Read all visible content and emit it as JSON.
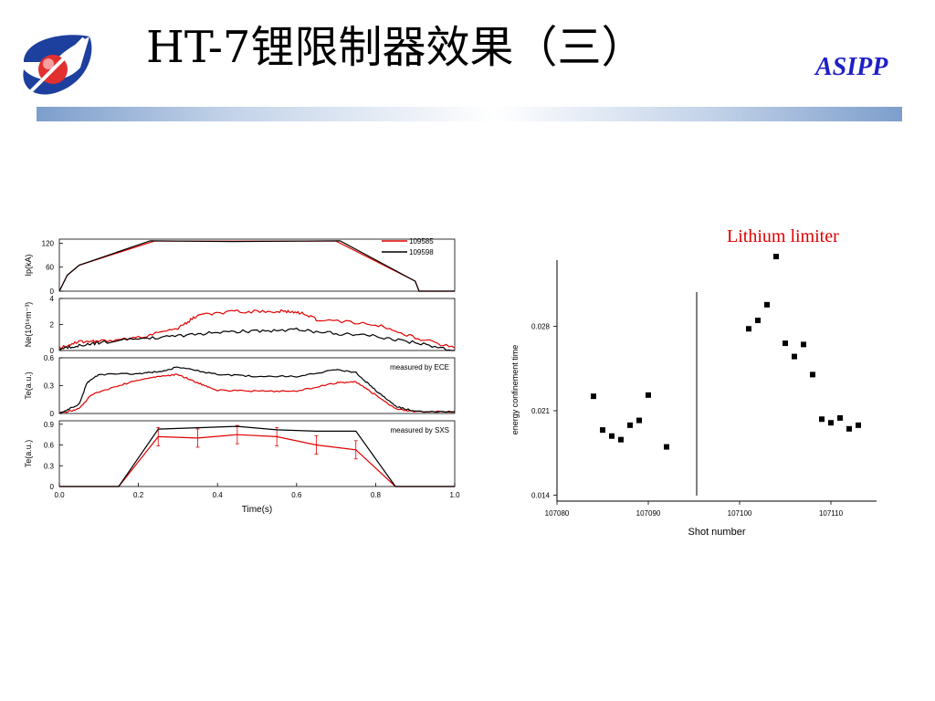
{
  "header": {
    "title": "HT-7锂限制器效果（三）",
    "organization": "ASIPP",
    "title_color": "#000000",
    "organization_color": "#1f1fc8"
  },
  "colors": {
    "shot_109585": "#e00000",
    "shot_109598": "#000000",
    "scatter_marker": "#000000",
    "annotation": "#e00000"
  },
  "chart_data": [
    {
      "type": "line",
      "panels": [
        {
          "ylabel": "Ip(kA)",
          "ylim": [
            0,
            130
          ],
          "yticks": [
            0,
            60,
            120
          ],
          "legend": {
            "position": "top-right",
            "entries": [
              "109585",
              "109598"
            ]
          },
          "series": [
            {
              "name": "109585",
              "x": [
                0.0,
                0.02,
                0.05,
                0.24,
                0.43,
                0.7,
                0.9,
                0.91,
                1.0
              ],
              "y": [
                0,
                40,
                65,
                125,
                125,
                125,
                25,
                0,
                0
              ]
            },
            {
              "name": "109598",
              "x": [
                0.0,
                0.02,
                0.05,
                0.23,
                0.44,
                0.71,
                0.9,
                0.91,
                1.0
              ],
              "y": [
                0,
                40,
                65,
                126,
                124,
                126,
                25,
                0,
                0
              ]
            }
          ]
        },
        {
          "ylabel": "Ne(10¹⁹m⁻³)",
          "ylim": [
            0,
            4
          ],
          "yticks": [
            0,
            2,
            4
          ],
          "series": [
            {
              "name": "109585",
              "x": [
                0.0,
                0.05,
                0.1,
                0.2,
                0.3,
                0.35,
                0.45,
                0.55,
                0.6,
                0.65,
                0.8,
                0.9,
                1.0
              ],
              "y": [
                0.2,
                0.7,
                0.7,
                1.0,
                1.7,
                2.7,
                3.0,
                3.0,
                3.0,
                2.4,
                2.0,
                1.0,
                0.2
              ]
            },
            {
              "name": "109598",
              "x": [
                0.0,
                0.05,
                0.1,
                0.2,
                0.3,
                0.4,
                0.5,
                0.6,
                0.7,
                0.8,
                0.9,
                1.0
              ],
              "y": [
                0.1,
                0.4,
                0.6,
                0.9,
                1.1,
                1.4,
                1.5,
                1.6,
                1.3,
                1.1,
                0.6,
                0.0
              ]
            }
          ]
        },
        {
          "ylabel": "Te(a.u.)",
          "ylim": [
            0,
            0.6
          ],
          "yticks": [
            0.0,
            0.3,
            0.6
          ],
          "annotation": "measured by ECE",
          "series": [
            {
              "name": "109585",
              "x": [
                0.0,
                0.05,
                0.08,
                0.15,
                0.2,
                0.25,
                0.3,
                0.35,
                0.4,
                0.5,
                0.6,
                0.7,
                0.75,
                0.8,
                0.85,
                0.9,
                1.0
              ],
              "y": [
                0,
                0.05,
                0.2,
                0.3,
                0.36,
                0.4,
                0.42,
                0.33,
                0.25,
                0.24,
                0.24,
                0.33,
                0.34,
                0.2,
                0.05,
                0.02,
                0.02
              ]
            },
            {
              "name": "109598",
              "x": [
                0.0,
                0.05,
                0.07,
                0.1,
                0.2,
                0.25,
                0.3,
                0.4,
                0.5,
                0.6,
                0.7,
                0.75,
                0.8,
                0.85,
                0.9,
                1.0
              ],
              "y": [
                0,
                0.1,
                0.33,
                0.42,
                0.43,
                0.45,
                0.5,
                0.42,
                0.4,
                0.4,
                0.47,
                0.44,
                0.25,
                0.08,
                0.02,
                0.02
              ]
            }
          ]
        },
        {
          "ylabel": "Te(a.u.)",
          "ylim": [
            0,
            0.95
          ],
          "yticks": [
            0.0,
            0.3,
            0.6,
            0.9
          ],
          "annotation": "measured by SXS",
          "xlabel": "Time(s)",
          "xlim": [
            0,
            1
          ],
          "xticks": [
            0.0,
            0.2,
            0.4,
            0.6,
            0.8,
            1.0
          ],
          "series": [
            {
              "name": "109585",
              "x": [
                0.0,
                0.15,
                0.25,
                0.35,
                0.45,
                0.55,
                0.65,
                0.75,
                0.85,
                1.0
              ],
              "y": [
                0,
                0,
                0.72,
                0.7,
                0.75,
                0.72,
                0.6,
                0.53,
                0,
                0
              ],
              "err_x": [
                0.25,
                0.35,
                0.45,
                0.55,
                0.65,
                0.75
              ]
            },
            {
              "name": "109598",
              "x": [
                0.0,
                0.15,
                0.25,
                0.35,
                0.45,
                0.55,
                0.65,
                0.75,
                0.85,
                1.0
              ],
              "y": [
                0,
                0,
                0.83,
                0.85,
                0.87,
                0.82,
                0.8,
                0.8,
                0,
                0
              ]
            }
          ]
        }
      ]
    },
    {
      "type": "scatter",
      "title": "Lithium limiter",
      "xlabel": "Shot number",
      "ylabel": "energy confinement time",
      "xlim": [
        107080,
        107115
      ],
      "ylim": [
        0.0135,
        0.0335
      ],
      "xticks": [
        107080,
        107090,
        107100,
        107110
      ],
      "yticks": [
        0.014,
        0.021,
        0.028
      ],
      "divider_x": 107095.3,
      "points": [
        [
          107084,
          0.0222
        ],
        [
          107085,
          0.0194
        ],
        [
          107086,
          0.0189
        ],
        [
          107087,
          0.0186
        ],
        [
          107088,
          0.0198
        ],
        [
          107089,
          0.0202
        ],
        [
          107090,
          0.0223
        ],
        [
          107092,
          0.018
        ],
        [
          107101,
          0.0278
        ],
        [
          107102,
          0.0285
        ],
        [
          107103,
          0.0298
        ],
        [
          107104,
          0.0338
        ],
        [
          107105,
          0.0266
        ],
        [
          107106,
          0.0255
        ],
        [
          107107,
          0.0265
        ],
        [
          107108,
          0.024
        ],
        [
          107109,
          0.0203
        ],
        [
          107110,
          0.02
        ],
        [
          107111,
          0.0204
        ],
        [
          107112,
          0.0195
        ],
        [
          107113,
          0.0198
        ]
      ]
    }
  ]
}
